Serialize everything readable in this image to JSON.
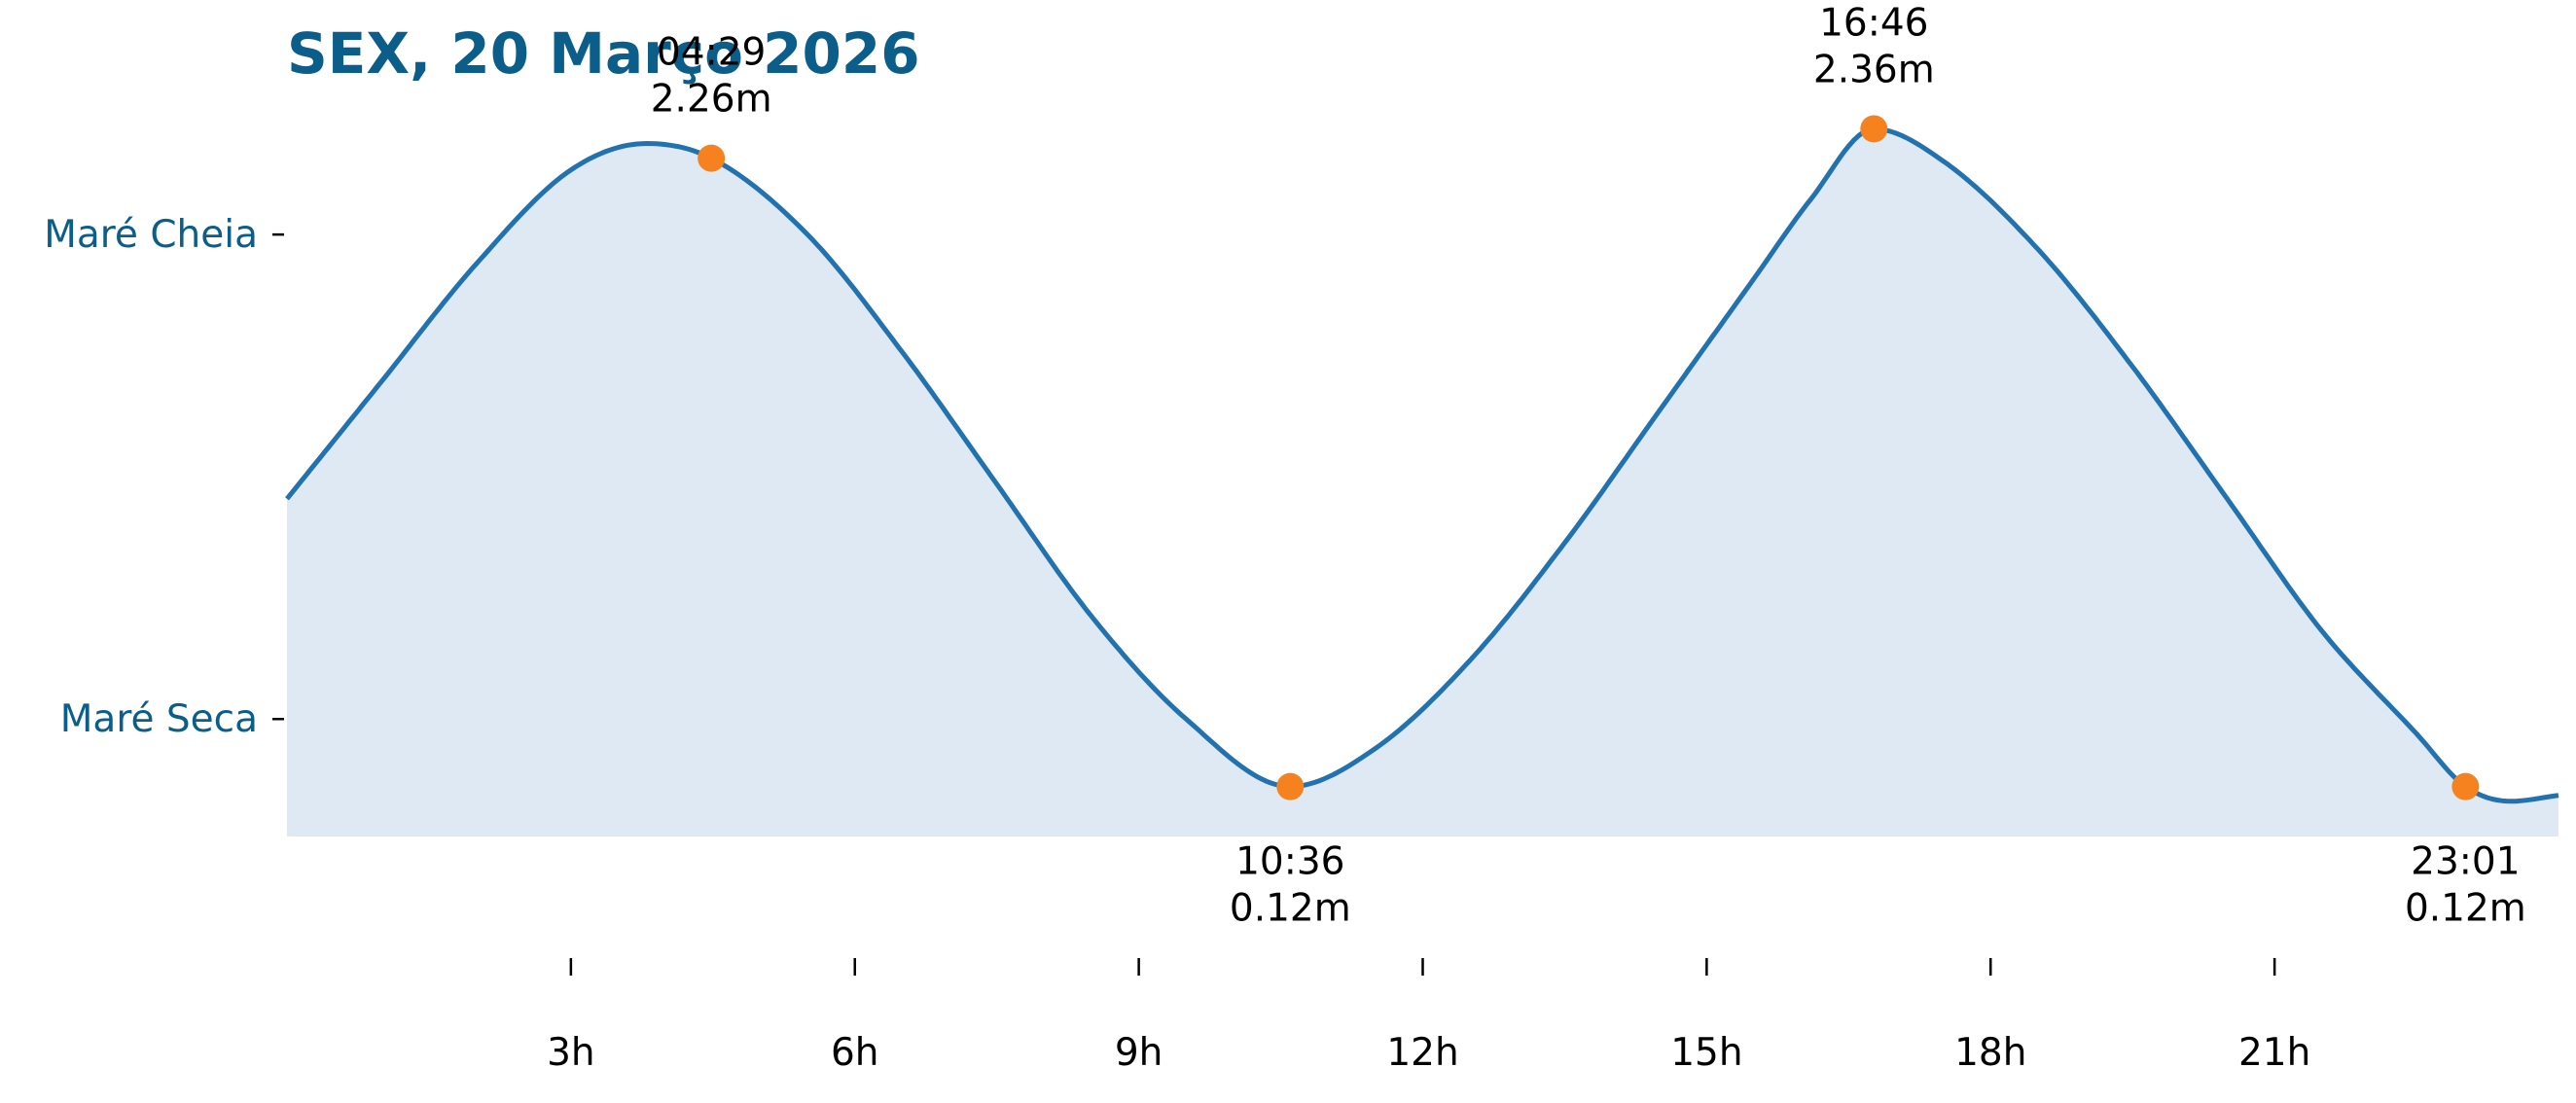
{
  "title": "SEX, 20 Março 2026",
  "colors": {
    "title": "#0b5e8a",
    "curve": "#2272b0",
    "fill": "#dee9f3",
    "marker": "#f5821f",
    "axis_text": "#000000",
    "ylabel_text": "#0b5e8a"
  },
  "chart_data": {
    "type": "area",
    "title": "SEX, 20 Março 2026",
    "xlabel": "",
    "ylabel": "",
    "xlim": [
      0,
      24
    ],
    "ylim": [
      -0.05,
      2.6
    ],
    "x_unit": "h",
    "x_ticks": [
      {
        "value": 3,
        "label": "3h"
      },
      {
        "value": 6,
        "label": "6h"
      },
      {
        "value": 9,
        "label": "9h"
      },
      {
        "value": 12,
        "label": "12h"
      },
      {
        "value": 15,
        "label": "15h"
      },
      {
        "value": 18,
        "label": "18h"
      },
      {
        "value": 21,
        "label": "21h"
      }
    ],
    "y_ticks": [
      {
        "value": 2.0,
        "label": "Maré Cheia"
      },
      {
        "value": 0.35,
        "label": "Maré Seca"
      }
    ],
    "grid": false,
    "legend": "none",
    "tide_events": [
      {
        "time": "04:29",
        "hour": 4.483,
        "height": 2.26,
        "height_label": "2.26m",
        "type": "high"
      },
      {
        "time": "10:36",
        "hour": 10.6,
        "height": 0.12,
        "height_label": "0.12m",
        "type": "low"
      },
      {
        "time": "16:46",
        "hour": 16.767,
        "height": 2.36,
        "height_label": "2.36m",
        "type": "high"
      },
      {
        "time": "23:01",
        "hour": 23.017,
        "height": 0.12,
        "height_label": "0.12m",
        "type": "low"
      }
    ],
    "series": [
      {
        "x": [
          0,
          1,
          2,
          3,
          3.8,
          4.483,
          5.5,
          6.5,
          7.5,
          8.5,
          9.5,
          10.6,
          11.5,
          12.5,
          13.5,
          14.5,
          15.5,
          16.1,
          16.767,
          17.5,
          18.5,
          19.5,
          20.5,
          21.5,
          22.5,
          23.017,
          23.5,
          24
        ],
        "y": [
          1.1,
          1.5,
          1.9,
          2.22,
          2.31,
          2.26,
          2.0,
          1.6,
          1.15,
          0.7,
          0.35,
          0.12,
          0.25,
          0.55,
          0.95,
          1.4,
          1.85,
          2.12,
          2.36,
          2.25,
          1.95,
          1.55,
          1.1,
          0.65,
          0.3,
          0.12,
          0.07,
          0.09
        ]
      }
    ]
  }
}
